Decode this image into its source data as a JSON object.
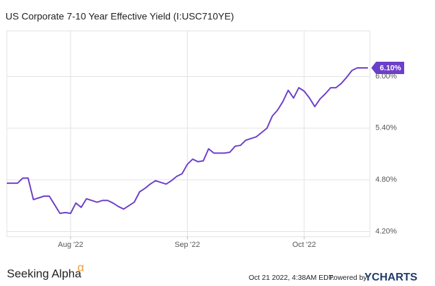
{
  "chart_data": {
    "type": "line",
    "title": "US Corporate 7-10 Year Effective Yield (I:USC710YE)",
    "categories": [
      null,
      null,
      null,
      null,
      null,
      null,
      null,
      null,
      null,
      null,
      null,
      null,
      "Aug '22",
      null,
      null,
      null,
      null,
      null,
      null,
      null,
      null,
      null,
      null,
      null,
      null,
      null,
      null,
      null,
      null,
      null,
      null,
      null,
      null,
      null,
      "Sep '22",
      null,
      null,
      null,
      null,
      null,
      null,
      null,
      null,
      null,
      null,
      null,
      null,
      null,
      null,
      null,
      null,
      null,
      null,
      null,
      null,
      null,
      "Oct '22",
      null,
      null,
      null,
      null,
      null,
      null,
      null,
      null,
      null,
      null,
      null,
      null
    ],
    "series": [
      {
        "name": "US Corporate 7-10 Year Effective Yield",
        "color": "#6c3fc8",
        "values": [
          4.76,
          4.76,
          4.76,
          4.82,
          4.82,
          4.57,
          4.59,
          4.61,
          4.61,
          4.51,
          4.41,
          4.42,
          4.41,
          4.53,
          4.48,
          4.58,
          4.56,
          4.54,
          4.56,
          4.56,
          4.53,
          4.49,
          4.46,
          4.5,
          4.54,
          4.66,
          4.7,
          4.75,
          4.79,
          4.77,
          4.75,
          4.79,
          4.84,
          4.87,
          4.98,
          5.04,
          5.01,
          5.02,
          5.16,
          5.11,
          5.11,
          5.11,
          5.12,
          5.19,
          5.2,
          5.26,
          5.28,
          5.3,
          5.35,
          5.4,
          5.54,
          5.61,
          5.71,
          5.84,
          5.75,
          5.87,
          5.83,
          5.75,
          5.65,
          5.74,
          5.8,
          5.87,
          5.87,
          5.92,
          5.99,
          6.07,
          6.1,
          6.1,
          6.1
        ],
        "value_labels": [
          null,
          null,
          null,
          null,
          null,
          null,
          null,
          null,
          null,
          null,
          null,
          null,
          null,
          null,
          null,
          null,
          null,
          null,
          null,
          null,
          null,
          null,
          null,
          null,
          null,
          null,
          null,
          null,
          null,
          null,
          null,
          null,
          null,
          null,
          null,
          null,
          null,
          null,
          null,
          null,
          null,
          null,
          null,
          null,
          null,
          null,
          null,
          null,
          null,
          null,
          null,
          null,
          null,
          null,
          null,
          null,
          null,
          null,
          null,
          null,
          null,
          null,
          null,
          null,
          null,
          null,
          null,
          null,
          "6.10%"
        ]
      }
    ],
    "ylim": [
      4.14,
      6.53
    ],
    "yticks": [
      {
        "value": 4.2,
        "label": "4.20%"
      },
      {
        "value": 4.8,
        "label": "4.80%"
      },
      {
        "value": 5.4,
        "label": "5.40%"
      },
      {
        "value": 6.0,
        "label": "6.00%"
      }
    ],
    "grid": true,
    "y_axis_side": "right"
  },
  "footer": {
    "brand": "Seeking Alpha",
    "brand_mark": "α",
    "timestamp": "Oct 21 2022, 4:38AM EDT.",
    "powered_by": "Powered by",
    "provider": "YCHARTS"
  }
}
